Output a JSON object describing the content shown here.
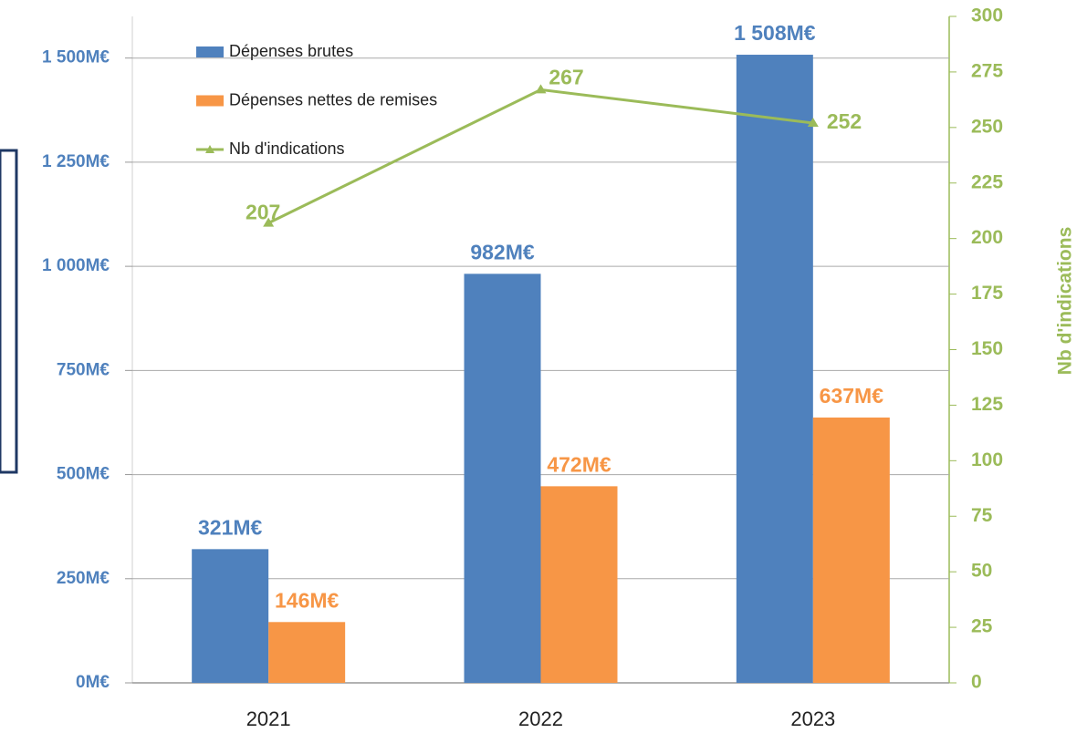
{
  "chart_data": {
    "type": "bar",
    "y2label": "Nb d'indications",
    "categories": [
      "2021",
      "2022",
      "2023"
    ],
    "series": [
      {
        "name": "Dépenses brutes",
        "color": "#4f81bd",
        "type": "bar",
        "values": [
          321,
          982,
          1508
        ],
        "value_labels": [
          "321M€",
          "982M€",
          "1 508M€"
        ]
      },
      {
        "name": "Dépenses nettes de remises",
        "color": "#f79646",
        "type": "bar",
        "values": [
          146,
          472,
          637
        ],
        "value_labels": [
          "146M€",
          "472M€",
          "637M€"
        ]
      },
      {
        "name": "Nb d'indications",
        "color": "#9bbb59",
        "type": "line",
        "axis": "y2",
        "values": [
          207,
          267,
          252
        ]
      }
    ],
    "ylim": [
      0,
      1600
    ],
    "yticks": [
      {
        "value": 0,
        "label": "0M€"
      },
      {
        "value": 250,
        "label": "250M€"
      },
      {
        "value": 500,
        "label": "500M€"
      },
      {
        "value": 750,
        "label": "750M€"
      },
      {
        "value": 1000,
        "label": "1 000M€"
      },
      {
        "value": 1250,
        "label": "1 250M€"
      },
      {
        "value": 1500,
        "label": "1 500M€"
      }
    ],
    "y2lim": [
      0,
      300
    ],
    "y2ticks": [
      0,
      25,
      50,
      75,
      100,
      125,
      150,
      175,
      200,
      225,
      250,
      275,
      300
    ],
    "grid": true
  }
}
